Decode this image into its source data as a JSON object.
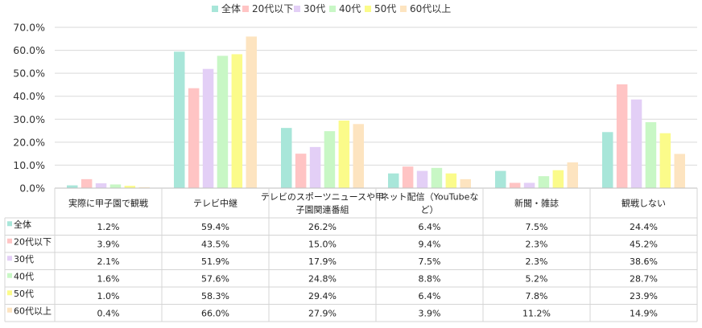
{
  "chart_data": {
    "type": "bar",
    "categories": [
      "実際に甲子園で観戦",
      "テレビ中継",
      "テレビのスポーツニュースや甲子園関連番組",
      "ネット配信（YouTubeなど）",
      "新聞・雑誌",
      "観戦しない"
    ],
    "category_lines": [
      [
        "実際に甲子園で観戦"
      ],
      [
        "テレビ中継"
      ],
      [
        "テレビのスポーツニュースや甲",
        "子園関連番組"
      ],
      [
        "ネット配信（YouTubeな",
        "ど）"
      ],
      [
        "新聞・雑誌"
      ],
      [
        "観戦しない"
      ]
    ],
    "series": [
      {
        "name": "全体",
        "color": "#a8e6d9",
        "values": [
          1.2,
          59.4,
          26.2,
          6.4,
          7.5,
          24.4
        ],
        "labels": [
          "1.2%",
          "59.4%",
          "26.2%",
          "6.4%",
          "7.5%",
          "24.4%"
        ]
      },
      {
        "name": "20代以下",
        "color": "#ffc4c4",
        "values": [
          3.9,
          43.5,
          15.0,
          9.4,
          2.3,
          45.2
        ],
        "labels": [
          "3.9%",
          "43.5%",
          "15.0%",
          "9.4%",
          "2.3%",
          "45.2%"
        ]
      },
      {
        "name": "30代",
        "color": "#e3cff6",
        "values": [
          2.1,
          51.9,
          17.9,
          7.5,
          2.3,
          38.6
        ],
        "labels": [
          "2.1%",
          "51.9%",
          "17.9%",
          "7.5%",
          "2.3%",
          "38.6%"
        ]
      },
      {
        "name": "40代",
        "color": "#c8f7c5",
        "values": [
          1.6,
          57.6,
          24.8,
          8.8,
          5.2,
          28.7
        ],
        "labels": [
          "1.6%",
          "57.6%",
          "24.8%",
          "8.8%",
          "5.2%",
          "28.7%"
        ]
      },
      {
        "name": "50代",
        "color": "#fbfb8a",
        "values": [
          1.0,
          58.3,
          29.4,
          6.4,
          7.8,
          23.9
        ],
        "labels": [
          "1.0%",
          "58.3%",
          "29.4%",
          "6.4%",
          "7.8%",
          "23.9%"
        ]
      },
      {
        "name": "60代以上",
        "color": "#fde4c0",
        "values": [
          0.4,
          66.0,
          27.9,
          3.9,
          11.2,
          14.9
        ],
        "labels": [
          "0.4%",
          "66.0%",
          "27.9%",
          "3.9%",
          "11.2%",
          "14.9%"
        ]
      }
    ],
    "y_ticks": [
      0,
      10,
      20,
      30,
      40,
      50,
      60,
      70
    ],
    "y_tick_labels": [
      "0.0%",
      "10.0%",
      "20.0%",
      "30.0%",
      "40.0%",
      "50.0%",
      "60.0%",
      "70.0%"
    ],
    "ylim": [
      0,
      70
    ],
    "grid": true,
    "legend_position": "top",
    "data_table": true,
    "title": "",
    "xlabel": "",
    "ylabel": ""
  }
}
